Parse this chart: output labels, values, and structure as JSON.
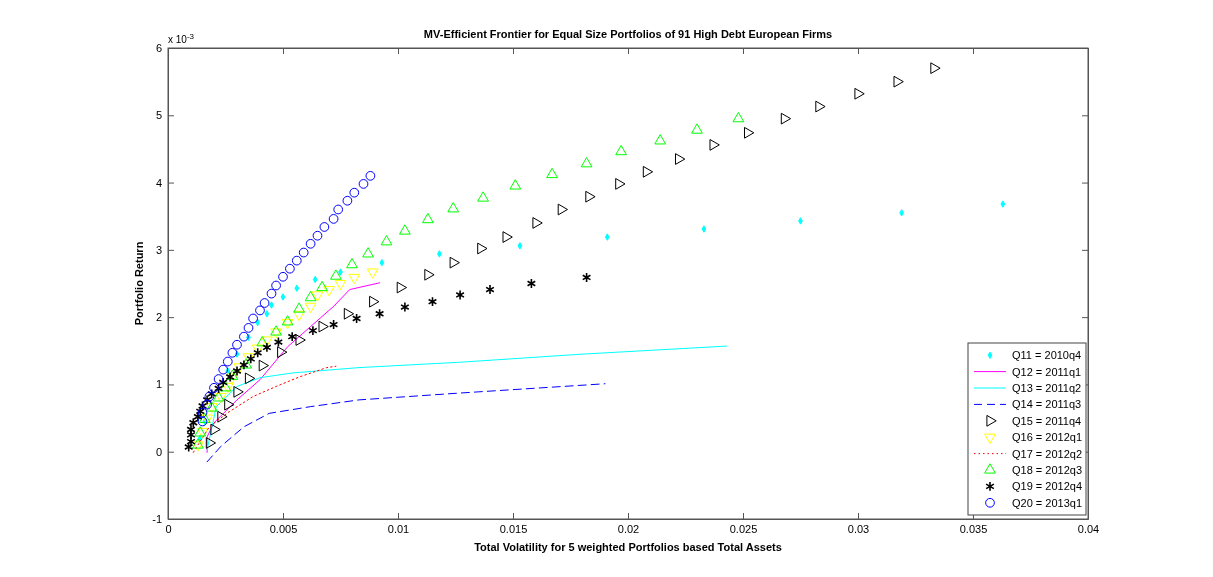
{
  "chart_data": {
    "type": "scatter",
    "title": "MV-Efficient Frontier for Equal Size Portfolios of 91 High Debt European Firms",
    "xlabel": "Total Volatility for 5 weighted Portfolios based Total Assets",
    "ylabel": "Portfolio Return",
    "annotations": [
      "x 10$^{-3}$"
    ],
    "xlim": [
      0,
      0.04
    ],
    "xticks": [
      0,
      0.005,
      0.01,
      0.015,
      0.02,
      0.025,
      0.03,
      0.035,
      0.04
    ],
    "ylim": [
      -1,
      6
    ],
    "yticks": [
      -1,
      0,
      1,
      2,
      3,
      4,
      5,
      6
    ],
    "grid": false,
    "legend": "bottom right",
    "series": [
      {
        "name": "Q11 = 2010q4",
        "type": "scatter",
        "marker": "diamond",
        "color": "#00ffff",
        "x": [
          0.0014,
          0.0016,
          0.0026,
          0.003,
          0.0035,
          0.0039,
          0.0043,
          0.0045,
          0.005,
          0.0056,
          0.0064,
          0.0075,
          0.0093,
          0.0118,
          0.0153,
          0.0191,
          0.0233,
          0.0275,
          0.0319,
          0.0363
        ],
        "values": [
          0.2,
          0.45,
          1.2,
          1.45,
          1.7,
          1.92,
          2.05,
          2.18,
          2.3,
          2.43,
          2.56,
          2.67,
          2.81,
          2.94,
          3.06,
          3.19,
          3.31,
          3.43,
          3.55,
          3.68
        ]
      },
      {
        "name": "Q12 = 2011q1",
        "type": "line",
        "marker": "none",
        "line_style": "solid",
        "color": "#ff00ff",
        "x": [
          0.0017,
          0.0017,
          0.002,
          0.003,
          0.004,
          0.0052,
          0.0062,
          0.0072,
          0.0079,
          0.0092
        ],
        "values": [
          -0.01,
          0.22,
          0.43,
          0.77,
          1.07,
          1.56,
          1.86,
          2.16,
          2.41,
          2.51
        ]
      },
      {
        "name": "Q13 = 2011q2",
        "type": "line",
        "marker": "none",
        "line_style": "solid",
        "color": "#00ffff",
        "x": [
          0.0017,
          0.0021,
          0.003,
          0.004,
          0.0054,
          0.0083,
          0.0127,
          0.018,
          0.0243
        ],
        "values": [
          0.03,
          0.67,
          0.97,
          1.1,
          1.17,
          1.25,
          1.33,
          1.45,
          1.57
        ]
      },
      {
        "name": "Q14 = 2011q3",
        "type": "line",
        "marker": "none",
        "line_style": "dashed",
        "color": "#0000ff",
        "x": [
          0.0017,
          0.0023,
          0.0033,
          0.0044,
          0.0062,
          0.0083,
          0.0126,
          0.019
        ],
        "values": [
          -0.15,
          0.08,
          0.37,
          0.57,
          0.67,
          0.77,
          0.87,
          1.01
        ]
      },
      {
        "name": "Q15 = 2011q4",
        "type": "scatter",
        "marker": "triangle-right",
        "color": "#000000",
        "x": [
          0.0018,
          0.002,
          0.0023,
          0.0026,
          0.003,
          0.0035,
          0.0041,
          0.0049,
          0.0057,
          0.0067,
          0.0078,
          0.0089,
          0.0101,
          0.0113,
          0.0124,
          0.0136,
          0.0147,
          0.016,
          0.0171,
          0.0183,
          0.0196,
          0.0208,
          0.0222,
          0.0237,
          0.0252,
          0.0268,
          0.0283,
          0.03,
          0.0317,
          0.0333
        ],
        "values": [
          0.13,
          0.33,
          0.52,
          0.7,
          0.89,
          1.09,
          1.28,
          1.48,
          1.66,
          1.86,
          2.05,
          2.23,
          2.44,
          2.63,
          2.81,
          3.02,
          3.19,
          3.4,
          3.6,
          3.79,
          3.98,
          4.16,
          4.35,
          4.56,
          4.74,
          4.95,
          5.13,
          5.32,
          5.5,
          5.7
        ]
      },
      {
        "name": "Q16 = 2012q1",
        "type": "scatter",
        "marker": "triangle-down",
        "color": "#ffff00",
        "x": [
          0.0013,
          0.0015,
          0.0017,
          0.0019,
          0.0023,
          0.0026,
          0.0028,
          0.0031,
          0.0035,
          0.0039,
          0.0043,
          0.0047,
          0.0052,
          0.0057,
          0.0062,
          0.0065,
          0.007,
          0.0075,
          0.0081,
          0.0089
        ],
        "values": [
          0.1,
          0.3,
          0.5,
          0.67,
          0.82,
          0.97,
          1.11,
          1.26,
          1.41,
          1.54,
          1.66,
          1.78,
          1.92,
          2.04,
          2.16,
          2.33,
          2.41,
          2.5,
          2.59,
          2.67
        ]
      },
      {
        "name": "Q17 = 2012q2",
        "type": "line",
        "marker": "none",
        "line_style": "dotted",
        "color": "#ff0000",
        "x": [
          0.0011,
          0.0018,
          0.0026,
          0.0037,
          0.0047,
          0.0057,
          0.0069,
          0.0073
        ],
        "values": [
          -0.01,
          0.37,
          0.58,
          0.82,
          0.97,
          1.11,
          1.25,
          1.27
        ]
      },
      {
        "name": "Q18 = 2012q3",
        "type": "scatter",
        "marker": "triangle",
        "color": "#00ff00",
        "x": [
          0.0013,
          0.0014,
          0.0016,
          0.0019,
          0.0022,
          0.0025,
          0.0028,
          0.0034,
          0.0041,
          0.0047,
          0.0052,
          0.0057,
          0.0062,
          0.0067,
          0.0073,
          0.008,
          0.0087,
          0.0095,
          0.0103,
          0.0113,
          0.0124,
          0.0137,
          0.0151,
          0.0167,
          0.0182,
          0.0197,
          0.0214,
          0.023,
          0.0248
        ],
        "values": [
          0.1,
          0.28,
          0.48,
          0.65,
          0.8,
          0.95,
          1.12,
          1.29,
          1.62,
          1.78,
          1.93,
          2.12,
          2.29,
          2.44,
          2.61,
          2.78,
          2.94,
          3.12,
          3.28,
          3.45,
          3.61,
          3.77,
          3.95,
          4.12,
          4.28,
          4.46,
          4.62,
          4.78,
          4.95
        ]
      },
      {
        "name": "Q19 = 2012q4",
        "type": "scatter",
        "marker": "cross",
        "color": "#000000",
        "x": [
          0.0009,
          0.001,
          0.001,
          0.001,
          0.0011,
          0.0013,
          0.0014,
          0.0015,
          0.0017,
          0.0019,
          0.0022,
          0.0024,
          0.0027,
          0.003,
          0.0033,
          0.0036,
          0.0039,
          0.0043,
          0.0048,
          0.0054,
          0.0063,
          0.0072,
          0.0082,
          0.0092,
          0.0103,
          0.0115,
          0.0127,
          0.014,
          0.0158,
          0.0182
        ],
        "values": [
          0.07,
          0.15,
          0.25,
          0.33,
          0.43,
          0.52,
          0.6,
          0.68,
          0.77,
          0.86,
          0.94,
          1.03,
          1.11,
          1.2,
          1.29,
          1.38,
          1.47,
          1.55,
          1.63,
          1.71,
          1.8,
          1.89,
          1.98,
          2.05,
          2.15,
          2.23,
          2.33,
          2.41,
          2.5,
          2.59
        ]
      },
      {
        "name": "Q20 = 2013q1",
        "type": "scatter",
        "marker": "circle",
        "color": "#0000ff",
        "x": [
          0.0015,
          0.0015,
          0.0017,
          0.0018,
          0.002,
          0.0022,
          0.0024,
          0.0026,
          0.0028,
          0.003,
          0.0033,
          0.0035,
          0.0037,
          0.004,
          0.0042,
          0.0045,
          0.0047,
          0.005,
          0.0053,
          0.0056,
          0.0059,
          0.0062,
          0.0065,
          0.0068,
          0.0072,
          0.0074,
          0.0078,
          0.0081,
          0.0085,
          0.0088
        ],
        "values": [
          0.45,
          0.58,
          0.7,
          0.82,
          0.95,
          1.08,
          1.22,
          1.34,
          1.47,
          1.59,
          1.71,
          1.84,
          1.98,
          2.1,
          2.21,
          2.35,
          2.47,
          2.6,
          2.72,
          2.84,
          2.96,
          3.09,
          3.21,
          3.34,
          3.46,
          3.6,
          3.73,
          3.85,
          3.98,
          4.1
        ]
      }
    ]
  }
}
